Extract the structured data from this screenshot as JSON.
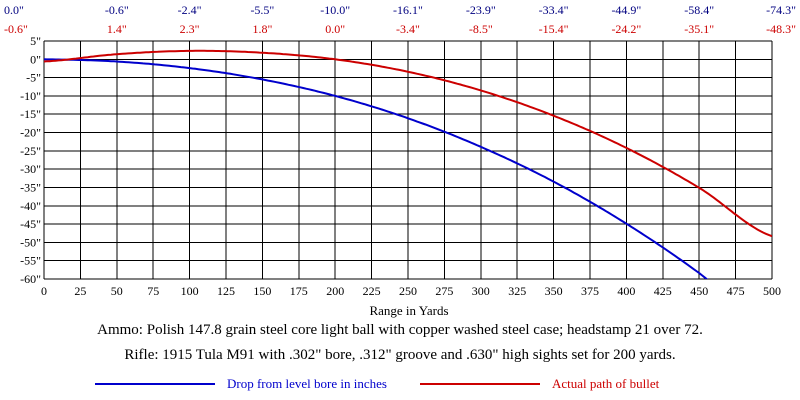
{
  "chart_data": {
    "type": "line",
    "xlabel": "Range in Yards",
    "ylabel": "",
    "xlim": [
      0,
      500
    ],
    "ylim": [
      -60,
      5
    ],
    "grid": true,
    "x_ticks": [
      0,
      25,
      50,
      75,
      100,
      125,
      150,
      175,
      200,
      225,
      250,
      275,
      300,
      325,
      350,
      375,
      400,
      425,
      450,
      475,
      500
    ],
    "y_ticks": [
      5,
      0,
      -5,
      -10,
      -15,
      -20,
      -25,
      -30,
      -35,
      -40,
      -45,
      -50,
      -55,
      -60
    ],
    "y_tick_labels": [
      "5\"",
      "0\"",
      "-5\"",
      "-10\"",
      "-15\"",
      "-20\"",
      "-25\"",
      "-30\"",
      "-35\"",
      "-40\"",
      "-45\"",
      "-50\"",
      "-55\"",
      "-60\""
    ],
    "top_rows": {
      "x": [
        0,
        50,
        100,
        150,
        200,
        250,
        300,
        350,
        400,
        450,
        500
      ],
      "drop_labels": [
        "0.0\"",
        "-0.6\"",
        "-2.4\"",
        "-5.5\"",
        "-10.0\"",
        "-16.1\"",
        "-23.9\"",
        "-33.4\"",
        "-44.9\"",
        "-58.4\"",
        "-74.3\""
      ],
      "path_labels": [
        "-0.6\"",
        "1.4\"",
        "2.3\"",
        "1.8\"",
        "0.0\"",
        "-3.4\"",
        "-8.5\"",
        "-15.4\"",
        "-24.2\"",
        "-35.1\"",
        "-48.3\""
      ]
    },
    "series": [
      {
        "name": "Drop from level bore in inches",
        "color": "#0000cc",
        "x": [
          0,
          50,
          100,
          150,
          200,
          250,
          300,
          350,
          400,
          450,
          500
        ],
        "values": [
          0.0,
          -0.6,
          -2.4,
          -5.5,
          -10.0,
          -16.1,
          -23.9,
          -33.4,
          -44.9,
          -58.4,
          -74.3
        ]
      },
      {
        "name": "Actual path of bullet",
        "color": "#cc0000",
        "x": [
          0,
          50,
          100,
          150,
          200,
          250,
          300,
          350,
          400,
          450,
          500
        ],
        "values": [
          -0.6,
          1.4,
          2.3,
          1.8,
          0.0,
          -3.4,
          -8.5,
          -15.4,
          -24.2,
          -35.1,
          -48.3
        ]
      }
    ],
    "captions": [
      "Ammo:  Polish 147.8 grain steel core light ball with copper washed steel case; headstamp 21 over 72.",
      "Rifle:  1915 Tula M91 with .302\" bore, .312\" groove and .630\" high sights set for 200 yards."
    ],
    "legend": [
      {
        "label": "Drop from level bore in inches",
        "color": "#0000cc"
      },
      {
        "label": "Actual path of bullet",
        "color": "#cc0000"
      }
    ]
  }
}
